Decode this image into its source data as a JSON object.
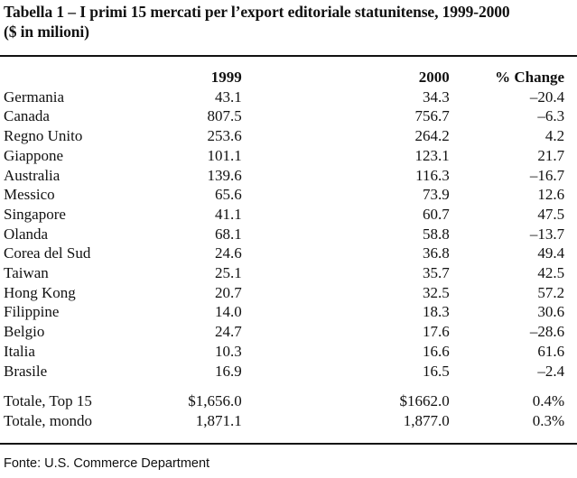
{
  "title_line1": "Tabella 1 – I primi 15 mercati per l’export editoriale statunitense, 1999-2000",
  "title_line2": "($ in milioni)",
  "columns": [
    "1999",
    "2000",
    "% Change"
  ],
  "rows": [
    {
      "country": "Germania",
      "y1999": "43.1",
      "y2000": "34.3",
      "change": "–20.4"
    },
    {
      "country": "Canada",
      "y1999": "807.5",
      "y2000": "756.7",
      "change": "–6.3"
    },
    {
      "country": "Regno Unito",
      "y1999": "253.6",
      "y2000": "264.2",
      "change": "4.2"
    },
    {
      "country": "Giappone",
      "y1999": "101.1",
      "y2000": "123.1",
      "change": "21.7"
    },
    {
      "country": "Australia",
      "y1999": "139.6",
      "y2000": "116.3",
      "change": "–16.7"
    },
    {
      "country": "Messico",
      "y1999": "65.6",
      "y2000": "73.9",
      "change": "12.6"
    },
    {
      "country": "Singapore",
      "y1999": "41.1",
      "y2000": "60.7",
      "change": "47.5"
    },
    {
      "country": "Olanda",
      "y1999": "68.1",
      "y2000": "58.8",
      "change": "–13.7"
    },
    {
      "country": "Corea del Sud",
      "y1999": "24.6",
      "y2000": "36.8",
      "change": "49.4"
    },
    {
      "country": "Taiwan",
      "y1999": "25.1",
      "y2000": "35.7",
      "change": "42.5"
    },
    {
      "country": "Hong Kong",
      "y1999": "20.7",
      "y2000": "32.5",
      "change": "57.2"
    },
    {
      "country": "Filippine",
      "y1999": "14.0",
      "y2000": "18.3",
      "change": "30.6"
    },
    {
      "country": "Belgio",
      "y1999": "24.7",
      "y2000": "17.6",
      "change": "–28.6"
    },
    {
      "country": "Italia",
      "y1999": "10.3",
      "y2000": "16.6",
      "change": "61.6"
    },
    {
      "country": "Brasile",
      "y1999": "16.9",
      "y2000": "16.5",
      "change": "–2.4"
    }
  ],
  "totals": [
    {
      "label": "Totale, Top 15",
      "y1999": "$1,656.0",
      "y2000": "$1662.0",
      "change": "0.4%"
    },
    {
      "label": "Totale, mondo",
      "y1999": "1,871.1",
      "y2000": "1,877.0",
      "change": "0.3%"
    }
  ],
  "source": "Fonte: U.S. Commerce Department"
}
